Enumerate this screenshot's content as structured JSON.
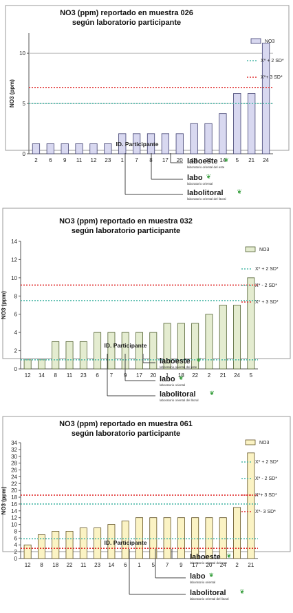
{
  "chart_data": [
    {
      "type": "bar",
      "title": "NO3 (ppm) reportado en muestra 026",
      "subtitle": "según laboratorio participante",
      "xlabel": "ID. Participante",
      "ylabel": "NO3 (ppm)",
      "ylim": [
        0,
        12
      ],
      "yticks": [
        0,
        5,
        10
      ],
      "grid": true,
      "bar_color": "#d8d8f0",
      "bar_stroke": "#404070",
      "categories": [
        "2",
        "6",
        "9",
        "11",
        "12",
        "23",
        "1",
        "7",
        "8",
        "17",
        "20",
        "18",
        "22",
        "14",
        "5",
        "21",
        "24"
      ],
      "series": [
        {
          "name": "NO3",
          "values": [
            1,
            1,
            1,
            1,
            1,
            1,
            2,
            2,
            2,
            2,
            2,
            3,
            3,
            4,
            6,
            6,
            11
          ]
        }
      ],
      "reference_lines": [
        {
          "name": "X* + 2 SD*",
          "value": 5.0,
          "color": "#4cb8a8"
        },
        {
          "name": "X*+ 3 SD*",
          "value": 6.6,
          "color": "#e03030"
        }
      ],
      "labs": [
        "laboeste",
        "labo",
        "labolitoral"
      ],
      "lab_subtitles": [
        "laboratorio oriental del este",
        "laboratorio oriental",
        "laboratorio oriental del litoral"
      ]
    },
    {
      "type": "bar",
      "title": "NO3 (ppm) reportado en muestra 032",
      "subtitle": "según laboratorio participante",
      "xlabel": "ID. Participante",
      "ylabel": "NO3 (ppm)",
      "ylim": [
        0,
        14
      ],
      "yticks": [
        0,
        2,
        4,
        6,
        8,
        10,
        12,
        14
      ],
      "grid": false,
      "bar_color": "#e4ecd0",
      "bar_stroke": "#506030",
      "categories": [
        "12",
        "14",
        "8",
        "11",
        "23",
        "6",
        "7",
        "9",
        "17",
        "20",
        "1",
        "18",
        "22",
        "2",
        "21",
        "24",
        "5"
      ],
      "series": [
        {
          "name": "NO3",
          "values": [
            1,
            1,
            3,
            3,
            3,
            4,
            4,
            4,
            4,
            4,
            5,
            5,
            5,
            6,
            7,
            7,
            10
          ]
        }
      ],
      "reference_lines": [
        {
          "name": "X* + 2 SD*",
          "value": 7.5,
          "color": "#4cb8a8"
        },
        {
          "name": "X* - 2 SD*",
          "value": 1.0,
          "color": "#4cb8a8"
        },
        {
          "name": "X* + 3 SD*",
          "value": 9.2,
          "color": "#e03030"
        }
      ],
      "labs": [
        "laboeste",
        "labo",
        "labolitoral"
      ],
      "lab_subtitles": [
        "laboratorio oriental del este",
        "laboratorio oriental",
        "laboratorio oriental del litoral"
      ]
    },
    {
      "type": "bar",
      "title": "NO3 (ppm) reportado en muestra 061",
      "subtitle": "según laboratorio participante",
      "xlabel": "ID. Participante",
      "ylabel": "NO3 (ppm)",
      "ylim": [
        0,
        34
      ],
      "yticks": [
        0,
        2,
        4,
        6,
        8,
        10,
        12,
        14,
        16,
        18,
        20,
        22,
        24,
        26,
        28,
        30,
        32,
        34
      ],
      "grid": false,
      "bar_color": "#fbf3c4",
      "bar_stroke": "#605020",
      "categories": [
        "12",
        "8",
        "18",
        "22",
        "11",
        "23",
        "14",
        "6",
        "1",
        "5",
        "7",
        "9",
        "17",
        "20",
        "24",
        "2",
        "21"
      ],
      "series": [
        {
          "name": "NO3",
          "values": [
            4,
            7,
            8,
            8,
            9,
            9,
            10,
            11,
            12,
            12,
            12,
            12,
            12,
            12,
            12,
            15,
            31
          ]
        }
      ],
      "reference_lines": [
        {
          "name": "X* + 2 SD*",
          "value": 16.0,
          "color": "#4cb8a8"
        },
        {
          "name": "X* - 2 SD*",
          "value": 5.8,
          "color": "#4cb8a8"
        },
        {
          "name": "X*+ 3 SD*",
          "value": 18.6,
          "color": "#e03030"
        },
        {
          "name": "X*- 3 SD*",
          "value": 3.0,
          "color": "#e03030"
        }
      ],
      "labs": [
        "laboeste",
        "labo",
        "labolitoral"
      ],
      "lab_subtitles": [
        "laboratorio oriental del este",
        "laboratorio oriental",
        "laboratorio oriental del litoral"
      ]
    }
  ]
}
